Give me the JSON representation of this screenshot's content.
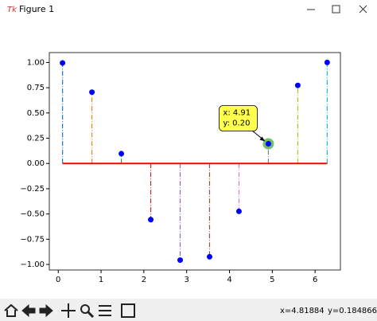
{
  "window": {
    "title": "Figure 1",
    "status_x": "x=4.81884",
    "status_y": "y=0.184866"
  },
  "chart_data": {
    "type": "stem",
    "x": [
      0.1,
      0.787,
      1.474,
      2.161,
      2.848,
      3.535,
      4.222,
      4.909,
      5.596,
      6.283
    ],
    "values": [
      0.995,
      0.706,
      0.097,
      -0.556,
      -0.957,
      -0.924,
      -0.474,
      0.195,
      0.773,
      1.0
    ],
    "stem_colors": [
      "#1f77b4",
      "#ff7f0e",
      "#2ca02c",
      "#d62728",
      "#9467bd",
      "#8c564b",
      "#e377c2",
      "#7f7f7f",
      "#bcbd22",
      "#17becf"
    ],
    "marker_color": "#0000ff",
    "baseline_color": "#ff0000",
    "xlim": [
      -0.209,
      6.592
    ],
    "ylim": [
      -1.055,
      1.098
    ],
    "xticks": [
      0,
      1,
      2,
      3,
      4,
      5,
      6
    ],
    "yticks": [
      {
        "value": -1,
        "label": "−1.00"
      },
      {
        "value": -0.75,
        "label": "−0.75"
      },
      {
        "value": -0.5,
        "label": "−0.50"
      },
      {
        "value": -0.25,
        "label": "−0.25"
      },
      {
        "value": 0,
        "label": "0.00"
      },
      {
        "value": 0.25,
        "label": "0.25"
      },
      {
        "value": 0.5,
        "label": "0.50"
      },
      {
        "value": 0.75,
        "label": "0.75"
      },
      {
        "value": 1,
        "label": "1.00"
      }
    ],
    "annotation": [
      "x: 4.91",
      "y: 0.20"
    ]
  }
}
